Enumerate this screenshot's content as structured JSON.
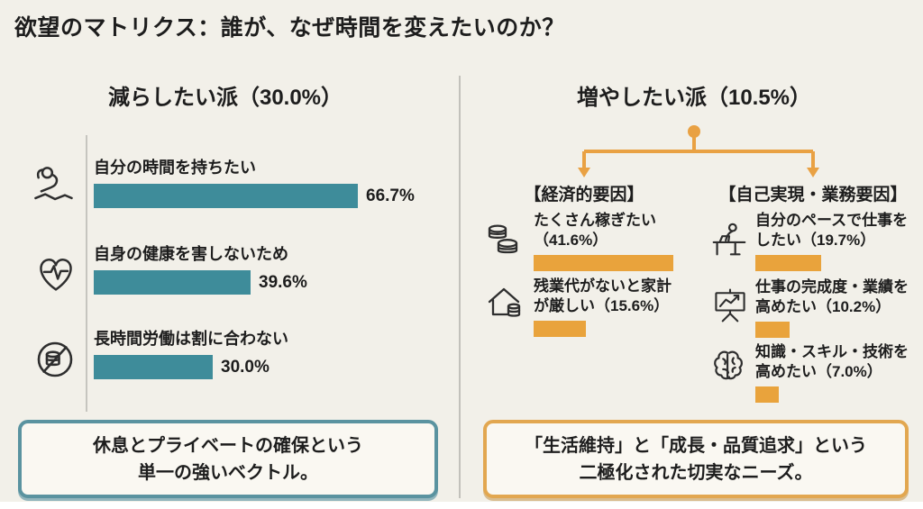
{
  "title": "欲望のマトリクス：誰が、なぜ時間を変えたいのか？",
  "colors": {
    "background": "#f2f0e9",
    "reduce_accent": "#3e8c9a",
    "increase_accent": "#e9a33c",
    "connector": "#e9a143",
    "text": "#1d1d1d"
  },
  "left_panel": {
    "header": "減らしたい派（30.0%）",
    "items": [
      {
        "icon": "relaxing-person",
        "label": "自分の時間を持ちたい",
        "pct_label": "66.7%",
        "value": 66.7
      },
      {
        "icon": "heart-pulse",
        "label": "自身の健康を害しないため",
        "pct_label": "39.6%",
        "value": 39.6
      },
      {
        "icon": "no-overtime-pay",
        "label": "長時間労働は割に合わない",
        "pct_label": "30.0%",
        "value": 30.0
      }
    ],
    "summary": "休息とプライベートの確保という\n単一の強いベクトル。"
  },
  "right_panel": {
    "header": "増やしたい派（10.5%）",
    "branches": [
      {
        "label": "【経済的要因】",
        "items": [
          {
            "icon": "coin-stack",
            "label": "たくさん稼ぎたい\n（41.6%）",
            "value": 41.6
          },
          {
            "icon": "house-coins",
            "label": "残業代がないと家計\nが厳しい（15.6%）",
            "value": 15.6
          }
        ]
      },
      {
        "label": "【自己実現・業務要因】",
        "items": [
          {
            "icon": "desk-worker",
            "label": "自分のペースで仕事を\nしたい（19.7%）",
            "value": 19.7
          },
          {
            "icon": "performance-chart",
            "label": "仕事の完成度・業績を\n高めたい（10.2%）",
            "value": 10.2
          },
          {
            "icon": "brain",
            "label": "知識・スキル・技術を\n高めたい（7.0%）",
            "value": 7.0
          }
        ]
      }
    ],
    "summary": "「生活維持」と「成長・品質追求」という\n二極化された切実なニーズ。"
  },
  "chart_data": [
    {
      "type": "bar",
      "orientation": "horizontal",
      "title": "減らしたい派（30.0%）",
      "group_share_pct": 30.0,
      "categories": [
        "自分の時間を持ちたい",
        "自身の健康を害しないため",
        "長時間労働は割に合わない"
      ],
      "values": [
        66.7,
        39.6,
        30.0
      ],
      "unit": "%",
      "bar_color": "#3e8c9a",
      "annotation": "休息とプライベートの確保という単一の強いベクトル。"
    },
    {
      "type": "bar",
      "orientation": "horizontal",
      "title": "増やしたい派（10.5%）",
      "group_share_pct": 10.5,
      "series": [
        {
          "name": "【経済的要因】",
          "categories": [
            "たくさん稼ぎたい",
            "残業代がないと家計が厳しい"
          ],
          "values": [
            41.6,
            15.6
          ]
        },
        {
          "name": "【自己実現・業務要因】",
          "categories": [
            "自分のペースで仕事をしたい",
            "仕事の完成度・業績を高めたい",
            "知識・スキル・技術を高めたい"
          ],
          "values": [
            19.7,
            10.2,
            7.0
          ]
        }
      ],
      "unit": "%",
      "bar_color": "#e9a33c",
      "annotation": "「生活維持」と「成長・品質追求」という二極化された切実なニーズ。"
    }
  ]
}
